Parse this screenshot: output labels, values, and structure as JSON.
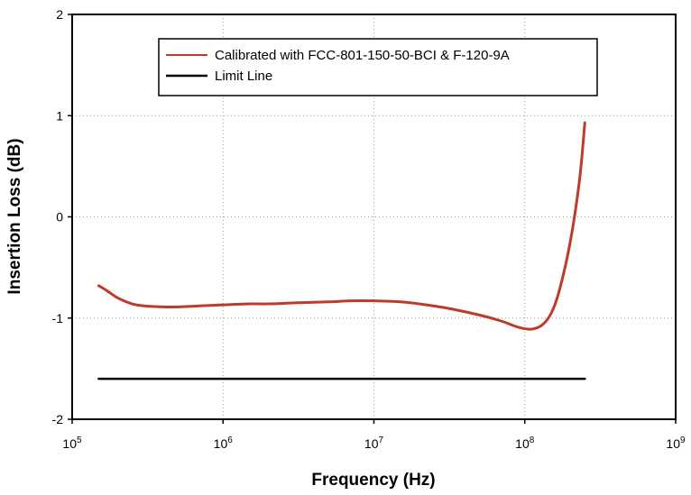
{
  "chart_data": {
    "type": "line",
    "title": "",
    "xlabel": "Frequency (Hz)",
    "ylabel": "Insertion Loss (dB)",
    "x_scale": "log",
    "xlim": [
      100000,
      1000000000
    ],
    "ylim": [
      -2,
      2
    ],
    "grid": true,
    "legend_position": "top",
    "x_ticks": [
      {
        "value": 100000,
        "base": "10",
        "exp": "5"
      },
      {
        "value": 1000000,
        "base": "10",
        "exp": "6"
      },
      {
        "value": 10000000,
        "base": "10",
        "exp": "7"
      },
      {
        "value": 100000000,
        "base": "10",
        "exp": "8"
      },
      {
        "value": 1000000000,
        "base": "10",
        "exp": "9"
      }
    ],
    "y_ticks": [
      {
        "value": 2,
        "label": "2"
      },
      {
        "value": 1,
        "label": "1"
      },
      {
        "value": 0,
        "label": "0"
      },
      {
        "value": -1,
        "label": "-1"
      },
      {
        "value": -2,
        "label": "-2"
      }
    ],
    "series": [
      {
        "name": "Calibrated with FCC-801-150-50-BCI & F-120-9A",
        "color": "#c0392b",
        "x": [
          150000,
          170000,
          200000,
          250000,
          300000,
          400000,
          500000,
          700000,
          1000000,
          1500000,
          2000000,
          3000000,
          5000000,
          7000000,
          10000000,
          15000000,
          20000000,
          30000000,
          50000000,
          70000000,
          90000000,
          110000000,
          130000000,
          150000000,
          170000000,
          200000000,
          230000000,
          250000000
        ],
        "y": [
          -0.68,
          -0.73,
          -0.8,
          -0.86,
          -0.88,
          -0.89,
          -0.89,
          -0.88,
          -0.87,
          -0.86,
          -0.86,
          -0.85,
          -0.84,
          -0.83,
          -0.83,
          -0.84,
          -0.86,
          -0.9,
          -0.97,
          -1.03,
          -1.09,
          -1.11,
          -1.07,
          -0.95,
          -0.72,
          -0.25,
          0.35,
          0.93
        ]
      },
      {
        "name": "Limit Line",
        "color": "#000000",
        "x": [
          150000,
          250000000
        ],
        "y": [
          -1.6,
          -1.6
        ]
      }
    ]
  }
}
